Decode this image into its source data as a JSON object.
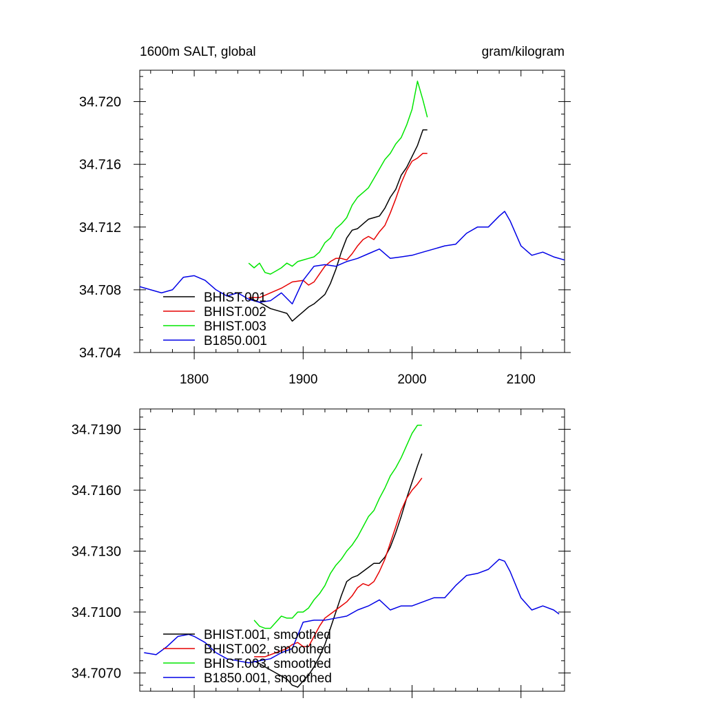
{
  "header": {
    "left": "1600m SALT, global",
    "right": "gram/kilogram"
  },
  "colors": {
    "BHIST.001": "#000000",
    "BHIST.002": "#e60000",
    "BHIST.003": "#00e600",
    "B1850.001": "#0000e6"
  },
  "chart_data": [
    {
      "type": "line",
      "title": "",
      "xlabel": "",
      "ylabel": "",
      "xlim": [
        1750,
        2140
      ],
      "ylim": [
        34.704,
        34.722
      ],
      "xticks": [
        1800,
        1900,
        2000,
        2100
      ],
      "xtick_labels": [
        "1800",
        "1900",
        "2000",
        "2100"
      ],
      "yticks": [
        34.704,
        34.708,
        34.712,
        34.716,
        34.72
      ],
      "ytick_labels": [
        "34.704",
        "34.708",
        "34.712",
        "34.716",
        "34.720"
      ],
      "legend_position": "bottom-left",
      "series": [
        {
          "name": "BHIST.001",
          "x": [
            1850,
            1860,
            1870,
            1880,
            1885,
            1890,
            1895,
            1900,
            1905,
            1910,
            1915,
            1920,
            1925,
            1930,
            1935,
            1940,
            1945,
            1950,
            1955,
            1960,
            1965,
            1970,
            1975,
            1980,
            1985,
            1990,
            1995,
            2000,
            2005,
            2010,
            2014
          ],
          "y": [
            34.7075,
            34.7072,
            34.7068,
            34.7066,
            34.7065,
            34.706,
            34.7063,
            34.7066,
            34.7069,
            34.7071,
            34.7074,
            34.7077,
            34.7084,
            34.7093,
            34.7104,
            34.7113,
            34.7118,
            34.7119,
            34.7122,
            34.7125,
            34.7126,
            34.7127,
            34.7132,
            34.7139,
            34.7144,
            34.7153,
            34.7158,
            34.7165,
            34.7172,
            34.7182,
            34.7182
          ]
        },
        {
          "name": "BHIST.002",
          "x": [
            1850,
            1860,
            1870,
            1880,
            1890,
            1900,
            1905,
            1910,
            1915,
            1920,
            1925,
            1930,
            1935,
            1940,
            1945,
            1950,
            1955,
            1960,
            1965,
            1970,
            1975,
            1980,
            1985,
            1990,
            1995,
            2000,
            2005,
            2010,
            2014
          ],
          "y": [
            34.7075,
            34.7075,
            34.7078,
            34.7081,
            34.7085,
            34.7086,
            34.7083,
            34.7085,
            34.709,
            34.7095,
            34.7098,
            34.71,
            34.71,
            34.7099,
            34.7103,
            34.7108,
            34.7112,
            34.7114,
            34.7112,
            34.7117,
            34.7121,
            34.7129,
            34.7138,
            34.7148,
            34.7156,
            34.7162,
            34.7164,
            34.7167,
            34.7167
          ]
        },
        {
          "name": "BHIST.003",
          "x": [
            1850,
            1855,
            1860,
            1865,
            1870,
            1875,
            1880,
            1885,
            1890,
            1895,
            1900,
            1905,
            1910,
            1915,
            1920,
            1925,
            1930,
            1935,
            1940,
            1945,
            1950,
            1955,
            1960,
            1965,
            1970,
            1975,
            1980,
            1985,
            1990,
            1995,
            2000,
            2005,
            2010,
            2014
          ],
          "y": [
            34.7097,
            34.7094,
            34.7097,
            34.7091,
            34.709,
            34.7092,
            34.7094,
            34.7097,
            34.7095,
            34.7098,
            34.7099,
            34.71,
            34.7101,
            34.7104,
            34.711,
            34.7113,
            34.7119,
            34.7122,
            34.7126,
            34.7134,
            34.7139,
            34.7142,
            34.7145,
            34.7151,
            34.7157,
            34.7163,
            34.7167,
            34.7173,
            34.7177,
            34.7185,
            34.7195,
            34.7213,
            34.7201,
            34.719
          ]
        },
        {
          "name": "B1850.001",
          "x": [
            1750,
            1760,
            1770,
            1780,
            1790,
            1800,
            1810,
            1820,
            1830,
            1840,
            1850,
            1860,
            1870,
            1880,
            1890,
            1900,
            1910,
            1920,
            1930,
            1940,
            1950,
            1960,
            1970,
            1980,
            1990,
            2000,
            2010,
            2020,
            2030,
            2040,
            2050,
            2060,
            2070,
            2080,
            2085,
            2090,
            2100,
            2110,
            2120,
            2130,
            2140
          ],
          "y": [
            34.7082,
            34.708,
            34.7078,
            34.708,
            34.7088,
            34.7089,
            34.7086,
            34.708,
            34.7076,
            34.7078,
            34.7074,
            34.7072,
            34.7073,
            34.7078,
            34.7071,
            34.7086,
            34.7095,
            34.7096,
            34.7095,
            34.7098,
            34.71,
            34.7103,
            34.7106,
            34.71,
            34.7101,
            34.7102,
            34.7104,
            34.7106,
            34.7108,
            34.7109,
            34.7116,
            34.712,
            34.712,
            34.7127,
            34.713,
            34.7124,
            34.7108,
            34.7102,
            34.7104,
            34.7101,
            34.7099
          ]
        }
      ]
    },
    {
      "type": "line",
      "title": "",
      "xlabel": "",
      "ylabel": "",
      "xlim": [
        1750,
        2140
      ],
      "ylim": [
        34.7061,
        34.72
      ],
      "xticks": [
        1800,
        1900,
        2000,
        2100
      ],
      "yticks": [
        34.707,
        34.71,
        34.713,
        34.716,
        34.719
      ],
      "ytick_labels": [
        "34.7070",
        "34.7100",
        "34.7130",
        "34.7160",
        "34.7190"
      ],
      "legend_position": "bottom-left",
      "series": [
        {
          "name": "BHIST.001, smoothed",
          "x": [
            1855,
            1865,
            1875,
            1885,
            1890,
            1895,
            1900,
            1905,
            1910,
            1915,
            1920,
            1925,
            1930,
            1935,
            1940,
            1945,
            1950,
            1955,
            1960,
            1965,
            1970,
            1975,
            1980,
            1985,
            1990,
            1995,
            2000,
            2005,
            2009
          ],
          "y": [
            34.7076,
            34.7073,
            34.707,
            34.7067,
            34.7064,
            34.7063,
            34.7066,
            34.7069,
            34.7073,
            34.7078,
            34.7084,
            34.7092,
            34.71,
            34.7108,
            34.7115,
            34.7117,
            34.7118,
            34.712,
            34.7122,
            34.7124,
            34.7124,
            34.7127,
            34.7132,
            34.7139,
            34.7147,
            34.7156,
            34.7164,
            34.7172,
            34.7178
          ]
        },
        {
          "name": "BHIST.002, smoothed",
          "x": [
            1855,
            1865,
            1875,
            1885,
            1890,
            1895,
            1900,
            1905,
            1910,
            1915,
            1920,
            1925,
            1930,
            1935,
            1940,
            1945,
            1950,
            1955,
            1960,
            1965,
            1970,
            1975,
            1980,
            1985,
            1990,
            1995,
            2000,
            2005,
            2009
          ],
          "y": [
            34.7078,
            34.7078,
            34.708,
            34.7082,
            34.7084,
            34.7085,
            34.7083,
            34.7083,
            34.7088,
            34.7093,
            34.7097,
            34.7099,
            34.7101,
            34.7103,
            34.7105,
            34.7108,
            34.7112,
            34.7114,
            34.7113,
            34.7115,
            34.712,
            34.7126,
            34.7134,
            34.7142,
            34.715,
            34.7156,
            34.716,
            34.7163,
            34.7166
          ]
        },
        {
          "name": "BHIST.003, smoothed",
          "x": [
            1855,
            1860,
            1865,
            1870,
            1875,
            1880,
            1885,
            1890,
            1895,
            1900,
            1905,
            1910,
            1915,
            1920,
            1925,
            1930,
            1935,
            1940,
            1945,
            1950,
            1955,
            1960,
            1965,
            1970,
            1975,
            1980,
            1985,
            1990,
            1995,
            2000,
            2005,
            2009
          ],
          "y": [
            34.7096,
            34.7093,
            34.7092,
            34.7092,
            34.7095,
            34.7098,
            34.7097,
            34.7097,
            34.71,
            34.71,
            34.7102,
            34.7106,
            34.7109,
            34.7113,
            34.7119,
            34.7123,
            34.7126,
            34.713,
            34.7133,
            34.7137,
            34.7142,
            34.7147,
            34.715,
            34.7156,
            34.7161,
            34.7167,
            34.7171,
            34.7176,
            34.7182,
            34.7188,
            34.7192,
            34.7192
          ]
        },
        {
          "name": "B1850.001, smoothed",
          "x": [
            1754,
            1765,
            1775,
            1785,
            1795,
            1800,
            1810,
            1820,
            1830,
            1840,
            1850,
            1860,
            1870,
            1880,
            1890,
            1900,
            1910,
            1920,
            1930,
            1940,
            1950,
            1960,
            1970,
            1980,
            1990,
            2000,
            2010,
            2020,
            2030,
            2040,
            2050,
            2060,
            2070,
            2080,
            2085,
            2090,
            2100,
            2110,
            2120,
            2130,
            2135
          ],
          "y": [
            34.708,
            34.7079,
            34.7083,
            34.7088,
            34.7089,
            34.7088,
            34.7085,
            34.708,
            34.7077,
            34.7076,
            34.7075,
            34.7076,
            34.7077,
            34.708,
            34.7082,
            34.7095,
            34.7096,
            34.7096,
            34.7097,
            34.7098,
            34.7101,
            34.7103,
            34.7106,
            34.7101,
            34.7103,
            34.7103,
            34.7105,
            34.7107,
            34.7107,
            34.7113,
            34.7118,
            34.7119,
            34.7121,
            34.7126,
            34.7125,
            34.712,
            34.7107,
            34.7101,
            34.7103,
            34.7101,
            34.7099
          ]
        }
      ]
    }
  ]
}
